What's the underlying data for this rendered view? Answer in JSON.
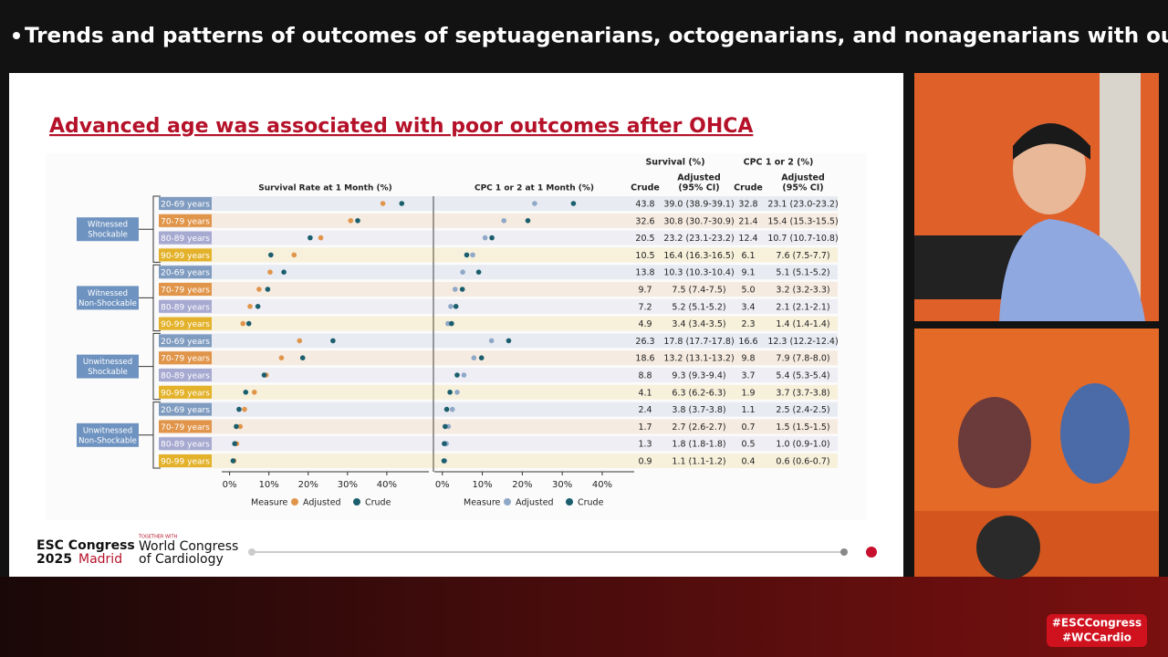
{
  "header": {
    "title": "Trends and patterns of outcomes of septuagenarians, octogenarians, and nonagenarians with out-o..."
  },
  "slide": {
    "title": "Advanced age was associated with poor outcomes after OHCA",
    "groups": [
      [
        "Witnessed",
        "Shockable"
      ],
      [
        "Witnessed",
        "Non-Shockable"
      ],
      [
        "Unwitnessed",
        "Shockable"
      ],
      [
        "Unwitnessed",
        "Non-Shockable"
      ]
    ],
    "categories": [
      "20-69 years",
      "70-79 years",
      "80-89 years",
      "90-99 years",
      "20-69 years",
      "70-79 years",
      "80-89 years",
      "90-99 years",
      "20-69 years",
      "70-79 years",
      "80-89 years",
      "90-99 years",
      "20-69 years",
      "70-79 years",
      "80-89 years",
      "90-99 years"
    ],
    "category_colors": [
      "#7f9cc0",
      "#e0954a",
      "#a6a9d0",
      "#e3b22a"
    ],
    "table": {
      "survival": "Survival (%)",
      "cpc": "CPC 1 or 2 (%)",
      "crude": "Crude",
      "adjusted": [
        "Adjusted",
        "(95% CI)"
      ]
    }
  },
  "chart_data": [
    {
      "type": "dot",
      "title": "Survival Rate at 1 Month (%)",
      "legend_title": "Measure",
      "xlim": [
        -2,
        50.7
      ],
      "xticks": [
        {
          "value": 0,
          "label": "0%"
        },
        {
          "value": 10,
          "label": "10%"
        },
        {
          "value": 20,
          "label": "20%"
        },
        {
          "value": 30,
          "label": "30%"
        },
        {
          "value": 40,
          "label": "40%"
        }
      ],
      "series": [
        {
          "name": "Adjusted",
          "color": "#e0954a",
          "values": [
            39.0,
            30.8,
            23.2,
            16.4,
            10.3,
            7.5,
            5.2,
            3.4,
            17.8,
            13.2,
            9.3,
            6.3,
            3.8,
            2.7,
            1.8,
            1.1
          ],
          "value_labels": [
            "39.0 (38.9-39.1)",
            "30.8 (30.7-30.9)",
            "23.2 (23.1-23.2)",
            "16.4 (16.3-16.5)",
            "10.3 (10.3-10.4)",
            "7.5 (7.4-7.5)",
            "5.2 (5.1-5.2)",
            "3.4 (3.4-3.5)",
            "17.8 (17.7-17.8)",
            "13.2 (13.1-13.2)",
            "9.3 (9.3-9.4)",
            "6.3 (6.2-6.3)",
            "3.8 (3.7-3.8)",
            "2.7 (2.6-2.7)",
            "1.8 (1.8-1.8)",
            "1.1 (1.1-1.2)"
          ]
        },
        {
          "name": "Crude",
          "color": "#1b5e6e",
          "values": [
            43.8,
            32.6,
            20.5,
            10.5,
            13.8,
            9.7,
            7.2,
            4.9,
            26.3,
            18.6,
            8.8,
            4.1,
            2.4,
            1.7,
            1.3,
            0.9
          ]
        }
      ]
    },
    {
      "type": "dot",
      "title": "CPC 1 or 2 at 1 Month (%)",
      "legend_title": "Measure",
      "xlim": [
        -2,
        48
      ],
      "xticks": [
        {
          "value": 0,
          "label": "0%"
        },
        {
          "value": 10,
          "label": "10%"
        },
        {
          "value": 20,
          "label": "20%"
        },
        {
          "value": 30,
          "label": "30%"
        },
        {
          "value": 40,
          "label": "40%"
        }
      ],
      "series": [
        {
          "name": "Adjusted",
          "color": "#8fa8c8",
          "values": [
            23.1,
            15.4,
            10.7,
            7.6,
            5.1,
            3.2,
            2.1,
            1.4,
            12.3,
            7.9,
            5.4,
            3.7,
            2.5,
            1.5,
            1.0,
            0.6
          ],
          "value_labels": [
            "23.1 (23.0-23.2)",
            "15.4 (15.3-15.5)",
            "10.7 (10.7-10.8)",
            "7.6 (7.5-7.7)",
            "5.1 (5.1-5.2)",
            "3.2 (3.2-3.3)",
            "2.1 (2.1-2.1)",
            "1.4 (1.4-1.4)",
            "12.3 (12.2-12.4)",
            "7.9 (7.8-8.0)",
            "5.4 (5.3-5.4)",
            "3.7 (3.7-3.8)",
            "2.5 (2.4-2.5)",
            "1.5 (1.5-1.5)",
            "1.0 (0.9-1.0)",
            "0.6 (0.6-0.7)"
          ]
        },
        {
          "name": "Crude",
          "color": "#1b5e6e",
          "values": [
            32.8,
            21.4,
            12.4,
            6.1,
            9.1,
            5.0,
            3.4,
            2.3,
            16.6,
            9.8,
            3.7,
            1.9,
            1.1,
            0.7,
            0.5,
            0.4
          ],
          "value_labels": [
            "32.8",
            "21.4",
            "12.4",
            "6.1",
            "9.1",
            "5.0",
            "3.4",
            "2.3",
            "16.6",
            "9.8",
            "3.7",
            "1.9",
            "1.1",
            "0.7",
            "0.5",
            "0.4"
          ]
        }
      ]
    }
  ],
  "footer": {
    "esc": [
      "ESC Congress",
      "2025",
      "Madrid"
    ],
    "together": "TOGETHER WITH",
    "wcc": [
      "World Congress",
      "of Cardiology"
    ],
    "hashtags": [
      "#ESCCongress",
      "#WCCardio"
    ]
  }
}
